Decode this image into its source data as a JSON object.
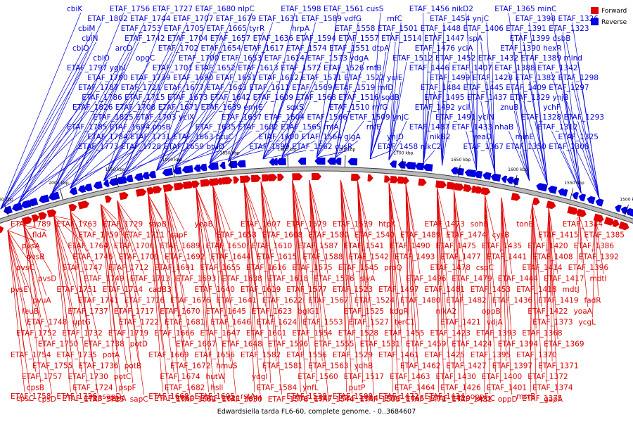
{
  "legend": {
    "forward": {
      "label": "Forward",
      "color": "#e00000"
    },
    "reverse": {
      "label": "Reverse",
      "color": "#0000e0"
    }
  },
  "caption": "Edwardsiella tarda FL6-60, complete genome. - 0..3684607",
  "ruler": [
    "2050 kbp",
    "2000 kbp",
    "1950 kbp",
    "1900 kbp",
    "1850 kbp",
    "1800 kbp",
    "1750 kbp",
    "1700 kbp",
    "1650 kbp",
    "1600 kbp",
    "1550 kbp",
    "1500 kbp"
  ],
  "reverse_labels": [
    "cbiK",
    "ETAF_1802",
    "cbiM",
    "cbiN",
    "cbiQ",
    "cbiO",
    "ETAF_1797",
    "ETAF_1790",
    "ETAF_1787",
    "ETAF_1786",
    "ETAF_1826",
    "ETAF_1825",
    "ETAF_1785",
    "ETAF_1784",
    "ETAF_1773",
    "ETAF_1756",
    "ETAF_1744",
    "ETAF_1753",
    "ETAF_1742",
    "arcD",
    "opgC",
    "ygbI",
    "ETAF_1739",
    "ETAF_1721",
    "ETAF_1715",
    "ETAF_1708",
    "ETAF_1703",
    "ETAF_1694",
    "ETAF_1731",
    "ETAF_1728",
    "ETAF_1727",
    "ETAF_1707",
    "ETAF_1705",
    "ETAF_1704",
    "ETAF_1702",
    "ETAF_1700",
    "ETAF_1701",
    "ETAF_1690",
    "ETAF_1677",
    "ETAF_1673",
    "ETAF_1671",
    "yciX",
    "phsB",
    "ETAF_1663",
    "ETAF_1659",
    "ETAF_1680",
    "ETAF_1679",
    "ETAF_1665",
    "ETAF_1657",
    "ETAF_1654",
    "ETAF_1653",
    "ETAF_1652",
    "ETAF_1651",
    "ETAF_1643",
    "ETAF_1642",
    "ETAF_1639",
    "ETAF_1637",
    "ETAF_1635",
    "btuC",
    "btuD",
    "nlpC",
    "ETAF_1631",
    "tyrR",
    "ETAF_1636",
    "ETAF_1617",
    "ETAF_1614",
    "ETAF_1613",
    "ETAF_1612",
    "ETAF_1611",
    "ETAF_1609",
    "emrE",
    "ETAF_1604",
    "ETAF_1602",
    "ETAF_1600",
    "ETAF_1599",
    "ETAF_1598",
    "ETAF_1589",
    "hrpA",
    "ETAF_1594",
    "ETAF_1574",
    "ETAF_1573",
    "ETAF_1572",
    "ETAF_1571",
    "ETAF_1569",
    "ETAF_1568",
    "soxS",
    "ETAF_1566",
    "ETAF_1565",
    "ETAF_1564",
    "ETAF_1562",
    "ETAF_1561",
    "vdfG",
    "ETAF_1558",
    "ETAF_1557",
    "ETAF_1551",
    "ydgA",
    "ETAF_1526",
    "ETAF_1522",
    "ETAF_1519",
    "ETAF_1516",
    "ETAF_1510",
    "ETAF_1509",
    "rnfA",
    "glgA",
    "cusR",
    "cusS",
    "rnfC",
    "ETAF_1501",
    "ETAF_1514",
    "dtpA",
    "ETAF_1512",
    "rnfB",
    "yuiE",
    "rnfD",
    "sodB",
    "rnfG",
    "ynjC",
    "rnfE",
    "ynjD",
    "ETAF_1458",
    "ETAF_1456",
    "ETAF_1454",
    "ETAF_1448",
    "ETAF_1447",
    "ETAF_1476",
    "ETAF_1452",
    "ETAF_1446",
    "ETAF_1499",
    "ETAF_1484",
    "ETAF_1495",
    "ETAF_1492",
    "ETAF_1491",
    "ETAF_1487",
    "nikB2",
    "nikC2",
    "nikD2",
    "ynjC",
    "ETAF_1406",
    "ispA",
    "yciA",
    "ETAF_1432",
    "ETAF_1407",
    "ETAF_1428",
    "ETAF_1445",
    "ETAF_1437",
    "ycil",
    "yciN",
    "ETAF_1433",
    "yeaD",
    "ETAF_1367",
    "ETAF_1365",
    "ETAF_1398",
    "ETAF_1391",
    "ETAF_1399",
    "ETAF_1390",
    "ETAF_1389",
    "ETAF_1388",
    "ETAF_1382",
    "ETAF_1409",
    "ETAF_1329",
    "znuB",
    "ETAF_1328",
    "nhaB",
    "minE",
    "ETAF_1350",
    "minC",
    "ETAF_1326",
    "ETAF_1323",
    "dsbB",
    "hexR",
    "mind",
    "ETAF_1342",
    "ETAF_1298",
    "ETAF_1297",
    "ynjB",
    "ychF",
    "ETAF_1293",
    "ETAF_1312",
    "ETAF_1325",
    "ETAF_1308"
  ],
  "forward_labels": [
    "ETAF_1789",
    "fldA",
    "pvsA",
    "pvsB",
    "pvsC",
    "pvsD",
    "pvsE",
    "pvuA",
    "feuB",
    "ETAF_1748",
    "ETAF_1752",
    "ETAF_1750",
    "ETAF_1754",
    "ETAF_1755",
    "ETAF_1757",
    "cpsB",
    "cpsC",
    "cpsD",
    "ETAF_1758",
    "ETAF_1763",
    "ETAF_1759",
    "ETAF_1764",
    "ETAF_1746",
    "ETAF_1747",
    "ETAF_1749",
    "ETAF_1751",
    "ETAF_1741",
    "ETAF_1737",
    "uptG",
    "ETAF_1732",
    "ETAF_1738",
    "ETAF_1735",
    "ETAF_1736",
    "ETAF_1730",
    "ETAF_1724",
    "ETAF_1723",
    "ETAF_1725",
    "ETAF_1726",
    "ETAF_1729",
    "ETAF_1711",
    "ETAF_1706",
    "ETAF_1709",
    "ETAF_1712",
    "ETAF_1713",
    "ETAF_1714",
    "ETAF_1716",
    "ETAF_1717",
    "ETAF_1722",
    "ETAF_1719",
    "potD",
    "potA",
    "potB",
    "potC",
    "pspF",
    "sapA",
    "sapC",
    "sapD",
    "sapB",
    "sapF",
    "ETAF_1689",
    "ETAF_1692",
    "ETAF_1691",
    "ETAF_1693",
    "cadB3",
    "ETAF_1676",
    "ETAF_1670",
    "ETAF_1681",
    "ETAF_1666",
    "ETAF_1667",
    "ETAF_1669",
    "ETAF_1672",
    "ETAF_1674",
    "ETAF_1682",
    "ETAF_1660",
    "ETAF_1662",
    "ETAF_1668",
    "yeaB",
    "ETAF_1658",
    "ETAF_1650",
    "ETAF_1644",
    "ETAF_1655",
    "ETAF_1638",
    "ETAF_1640",
    "ETAF_1641",
    "ETAF_1645",
    "ETAF_1646",
    "ETAF_1647",
    "ETAF_1648",
    "ETAF_1656",
    "hmuS",
    "hutW",
    "hsll",
    "ETAF_1621",
    "ETAF_1630",
    "ETAF_1605",
    "ETAF_1607",
    "ETAF_1608",
    "ETAF_1610",
    "ETAF_1615",
    "ETAF_1616",
    "ETAF_1618",
    "ETAF_1619",
    "ETAF_1622",
    "ETAF_1623",
    "ETAF_1624",
    "ETAF_1601",
    "ETAF_1596",
    "ETAF_1582",
    "ETAF_1581",
    "ydgl",
    "ETAF_1584",
    "folM",
    "ETAF_1578",
    "rstA",
    "ETAF_1579",
    "ETAF_1580",
    "ETAF_1587",
    "ETAF_1588",
    "ETAF_1575",
    "ETAF_1576",
    "ETAF_1577",
    "ETAF_1567",
    "bglG1",
    "ETAF_1553",
    "ETAF_1554",
    "ETAF_1555",
    "ETAF_1556",
    "ETAF_1563",
    "ETAF_1560",
    "ynfL",
    "ETAF_1547",
    "ETAF_1544",
    "ETAF_1538",
    "ETAF_1539",
    "ETAF_1540",
    "ETAF_1541",
    "ETAF_1542",
    "ETAF_1545",
    "slyA",
    "ETAF_1523",
    "ETAF_1524",
    "ETAF_1525",
    "ETAF_1527",
    "ETAF_1528",
    "ETAF_1531",
    "ETAF_1529",
    "ydhB",
    "ETAF_1517",
    "putP",
    "ETAF_1504",
    "ETAF_1505",
    "ETAF_1508",
    "htpX",
    "ETAF_1489",
    "ETAF_1490",
    "ETAF_1493",
    "proQ",
    "ETAF_1496",
    "ETAF_1497",
    "ETAF_1480",
    "kdgR",
    "terC1",
    "ETAF_1455",
    "ETAF_1459",
    "ETAF_1461",
    "ETAF_1462",
    "ETAF_1463",
    "ETAF_1464",
    "ETAF_1465",
    "ETAF_1471",
    "ETAF_1472",
    "ETAF_1473",
    "ETAF_1474",
    "ETAF_1475",
    "ETAF_1477",
    "ETAF_1478",
    "ETAF_1479",
    "ETAF_1481",
    "ETAF_1482",
    "nikA2",
    "ETAF_1421",
    "ETAF_1423",
    "ETAF_1424",
    "ETAF_1425",
    "ETAF_1427",
    "ETAF_1430",
    "ETAF_1426",
    "ETAF_1429",
    "ETAF_1431",
    "ETAF_1434",
    "sohB",
    "cysB",
    "ETAF_1435",
    "ETAF_1441",
    "cspC",
    "ETAF_1444",
    "ETAF_1453",
    "ETAF_1436",
    "oppB",
    "vdjA",
    "ETAF_1393",
    "ETAF_1394",
    "ETAF_1395",
    "ETAF_1397",
    "ETAF_1400",
    "ETAF_1401",
    "oppC",
    "oppD",
    "oppF",
    "tonB",
    "ETAF_1415",
    "ETAF_1420",
    "ETAF_1408",
    "ETAF_1414",
    "ETAF_1417",
    "ETAF_1418",
    "ETAF_1419",
    "ETAF_1422",
    "ETAF_1373",
    "ETAF_1368",
    "ETAF_1369",
    "ETAF_1370",
    "ETAF_1371",
    "ETAF_1372",
    "ETAF_1374",
    "ETAF_1375",
    "gapA",
    "msrB",
    "ETAF_1384",
    "ETAF_1385",
    "ETAF_1386",
    "ETAF_1392",
    "ETAF_1396",
    "mdtI",
    "mdtJ",
    "fadR",
    "yoaA",
    "ycgL"
  ]
}
